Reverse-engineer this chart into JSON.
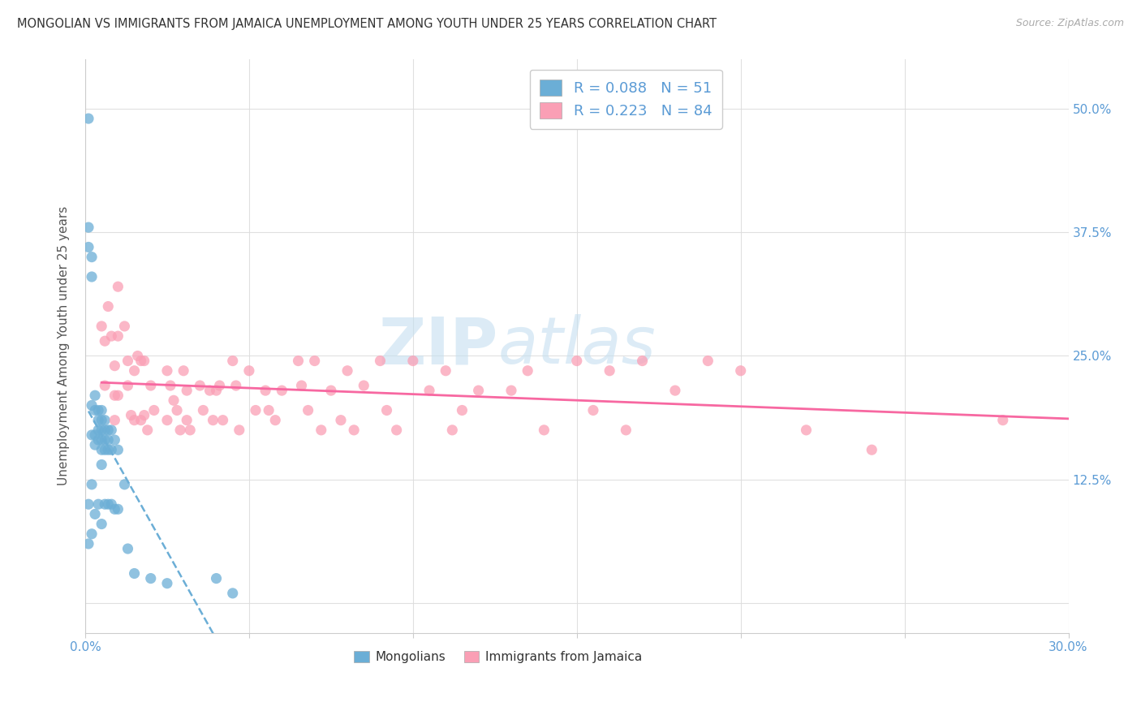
{
  "title": "MONGOLIAN VS IMMIGRANTS FROM JAMAICA UNEMPLOYMENT AMONG YOUTH UNDER 25 YEARS CORRELATION CHART",
  "source": "Source: ZipAtlas.com",
  "ylabel": "Unemployment Among Youth under 25 years",
  "xlim": [
    0.0,
    0.3
  ],
  "ylim": [
    -0.03,
    0.55
  ],
  "blue_color": "#6baed6",
  "pink_color": "#fa9fb5",
  "blue_trend_color": "#6baed6",
  "pink_trend_color": "#f768a1",
  "watermark_zip": "ZIP",
  "watermark_atlas": "atlas",
  "mongolian_x": [
    0.001,
    0.001,
    0.001,
    0.001,
    0.001,
    0.002,
    0.002,
    0.002,
    0.002,
    0.002,
    0.002,
    0.003,
    0.003,
    0.003,
    0.003,
    0.003,
    0.004,
    0.004,
    0.004,
    0.004,
    0.004,
    0.005,
    0.005,
    0.005,
    0.005,
    0.005,
    0.005,
    0.005,
    0.006,
    0.006,
    0.006,
    0.006,
    0.006,
    0.007,
    0.007,
    0.007,
    0.007,
    0.008,
    0.008,
    0.008,
    0.009,
    0.009,
    0.01,
    0.01,
    0.012,
    0.013,
    0.015,
    0.02,
    0.025,
    0.04,
    0.045
  ],
  "mongolian_y": [
    0.49,
    0.38,
    0.36,
    0.1,
    0.06,
    0.35,
    0.33,
    0.2,
    0.17,
    0.12,
    0.07,
    0.21,
    0.195,
    0.17,
    0.16,
    0.09,
    0.195,
    0.185,
    0.175,
    0.165,
    0.1,
    0.195,
    0.185,
    0.175,
    0.165,
    0.155,
    0.14,
    0.08,
    0.185,
    0.175,
    0.165,
    0.155,
    0.1,
    0.175,
    0.165,
    0.155,
    0.1,
    0.175,
    0.155,
    0.1,
    0.165,
    0.095,
    0.155,
    0.095,
    0.12,
    0.055,
    0.03,
    0.025,
    0.02,
    0.025,
    0.01
  ],
  "jamaica_x": [
    0.005,
    0.006,
    0.006,
    0.007,
    0.008,
    0.009,
    0.009,
    0.009,
    0.01,
    0.01,
    0.01,
    0.012,
    0.013,
    0.013,
    0.014,
    0.015,
    0.015,
    0.016,
    0.017,
    0.017,
    0.018,
    0.018,
    0.019,
    0.02,
    0.021,
    0.025,
    0.025,
    0.026,
    0.027,
    0.028,
    0.029,
    0.03,
    0.031,
    0.031,
    0.032,
    0.035,
    0.036,
    0.038,
    0.039,
    0.04,
    0.041,
    0.042,
    0.045,
    0.046,
    0.047,
    0.05,
    0.052,
    0.055,
    0.056,
    0.058,
    0.06,
    0.065,
    0.066,
    0.068,
    0.07,
    0.072,
    0.075,
    0.078,
    0.08,
    0.082,
    0.085,
    0.09,
    0.092,
    0.095,
    0.1,
    0.105,
    0.11,
    0.112,
    0.115,
    0.12,
    0.13,
    0.135,
    0.14,
    0.15,
    0.155,
    0.16,
    0.165,
    0.17,
    0.18,
    0.19,
    0.2,
    0.22,
    0.24,
    0.28
  ],
  "jamaica_y": [
    0.28,
    0.265,
    0.22,
    0.3,
    0.27,
    0.24,
    0.21,
    0.185,
    0.32,
    0.27,
    0.21,
    0.28,
    0.245,
    0.22,
    0.19,
    0.235,
    0.185,
    0.25,
    0.245,
    0.185,
    0.245,
    0.19,
    0.175,
    0.22,
    0.195,
    0.235,
    0.185,
    0.22,
    0.205,
    0.195,
    0.175,
    0.235,
    0.215,
    0.185,
    0.175,
    0.22,
    0.195,
    0.215,
    0.185,
    0.215,
    0.22,
    0.185,
    0.245,
    0.22,
    0.175,
    0.235,
    0.195,
    0.215,
    0.195,
    0.185,
    0.215,
    0.245,
    0.22,
    0.195,
    0.245,
    0.175,
    0.215,
    0.185,
    0.235,
    0.175,
    0.22,
    0.245,
    0.195,
    0.175,
    0.245,
    0.215,
    0.235,
    0.175,
    0.195,
    0.215,
    0.215,
    0.235,
    0.175,
    0.245,
    0.195,
    0.235,
    0.175,
    0.245,
    0.215,
    0.245,
    0.235,
    0.175,
    0.155,
    0.185
  ]
}
